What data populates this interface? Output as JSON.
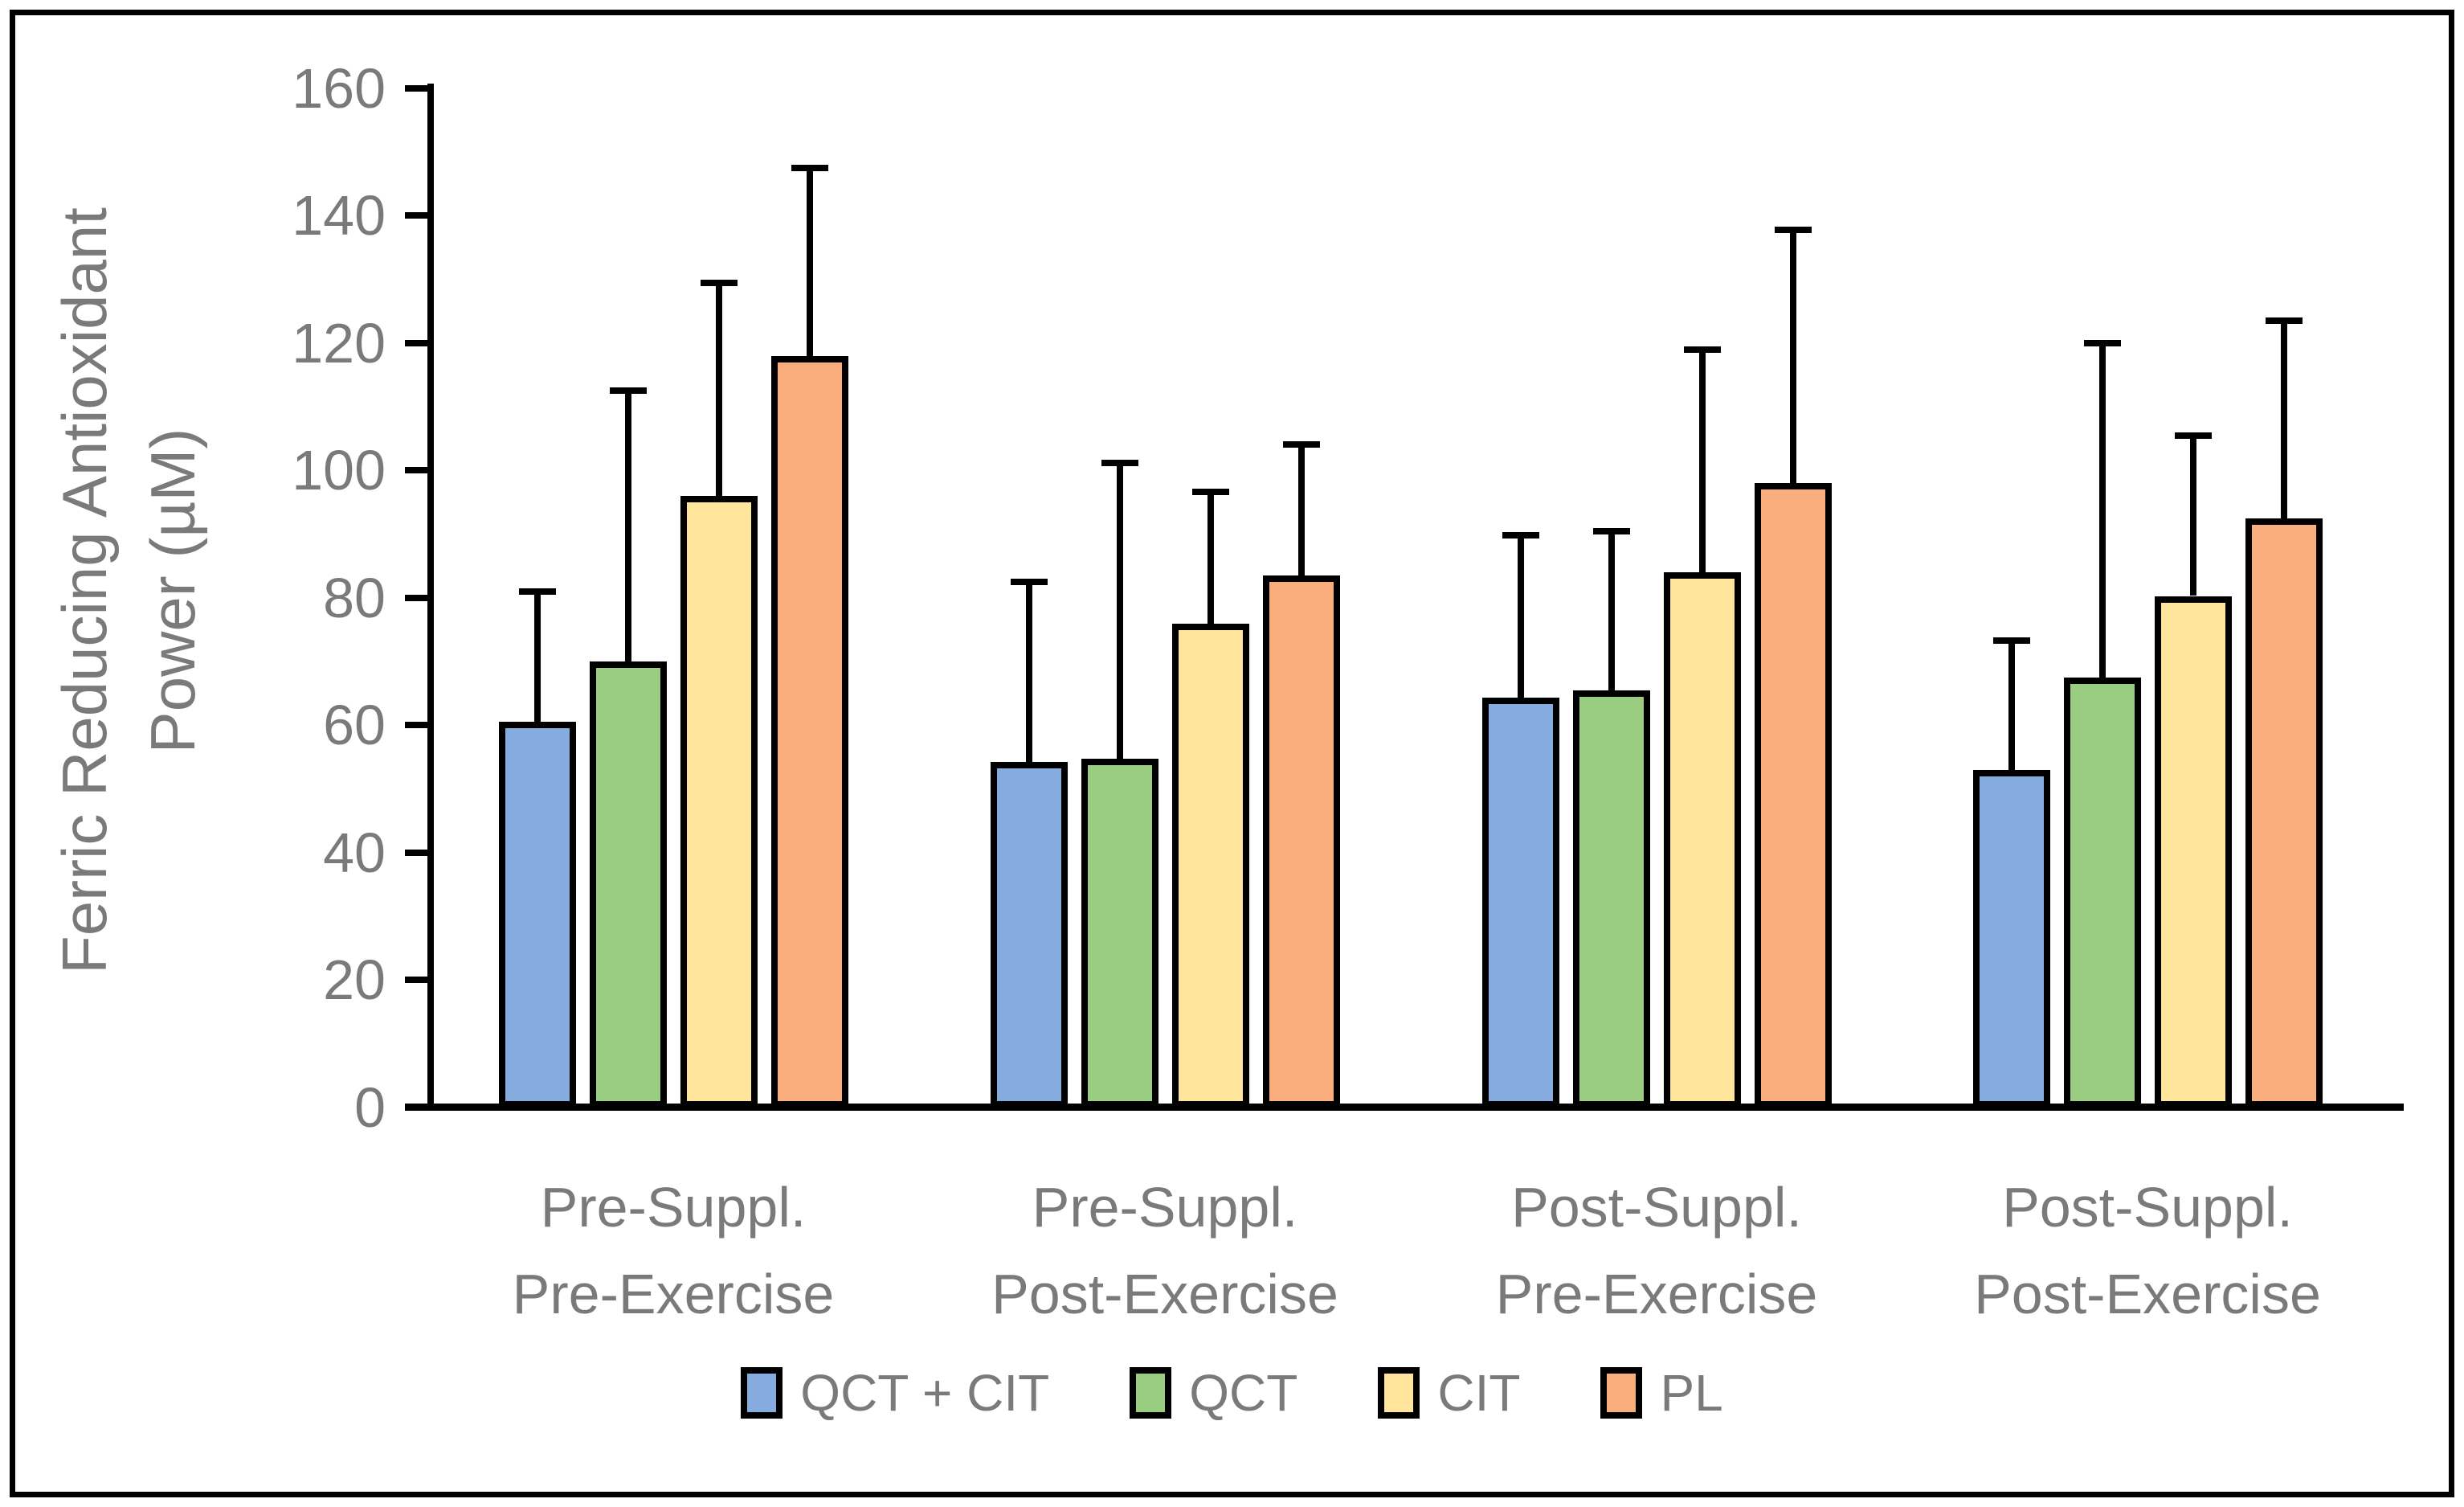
{
  "chart_data": {
    "type": "bar",
    "title": "",
    "ylabel_lines": [
      "Ferric Reducing Antioxidant",
      "Power (µM)"
    ],
    "xlabel": "",
    "ylim": [
      0,
      160
    ],
    "ytick_step": 20,
    "yticks": [
      0,
      20,
      40,
      60,
      80,
      100,
      120,
      140,
      160
    ],
    "ytick_labels": [
      "0",
      "20",
      "40",
      "60",
      "80",
      "100",
      "120",
      "140",
      "160"
    ],
    "grid": false,
    "legend_position": "bottom",
    "error_bars": "upper_only",
    "categories": [
      [
        "Pre-Suppl.",
        "Pre-Exercise"
      ],
      [
        "Pre-Suppl.",
        "Post-Exercise"
      ],
      [
        "Post-Suppl.",
        "Pre-Exercise"
      ],
      [
        "Post-Suppl.",
        "Post-Exercise"
      ]
    ],
    "series": [
      {
        "name": "QCT + CIT",
        "color": "#86abdf",
        "values": [
          60.5,
          54.2,
          64.3,
          53.0
        ],
        "errors_up": [
          20.5,
          28.3,
          25.5,
          20.3
        ]
      },
      {
        "name": "QCT",
        "color": "#9acd82",
        "values": [
          70.0,
          54.7,
          65.5,
          67.5
        ],
        "errors_up": [
          42.5,
          46.5,
          25.0,
          52.5
        ]
      },
      {
        "name": "CIT",
        "color": "#ffe49c",
        "values": [
          96.0,
          76.0,
          84.0,
          80.3
        ],
        "errors_up": [
          33.5,
          20.6,
          35.0,
          25.2
        ]
      },
      {
        "name": "PL",
        "color": "#faad7d",
        "values": [
          118.0,
          83.5,
          98.0,
          92.5
        ],
        "errors_up": [
          29.5,
          20.6,
          39.8,
          31.0
        ]
      }
    ],
    "colors": {
      "axis": "#000000",
      "text_gray": "#7a7a7a",
      "background": "#ffffff"
    }
  }
}
